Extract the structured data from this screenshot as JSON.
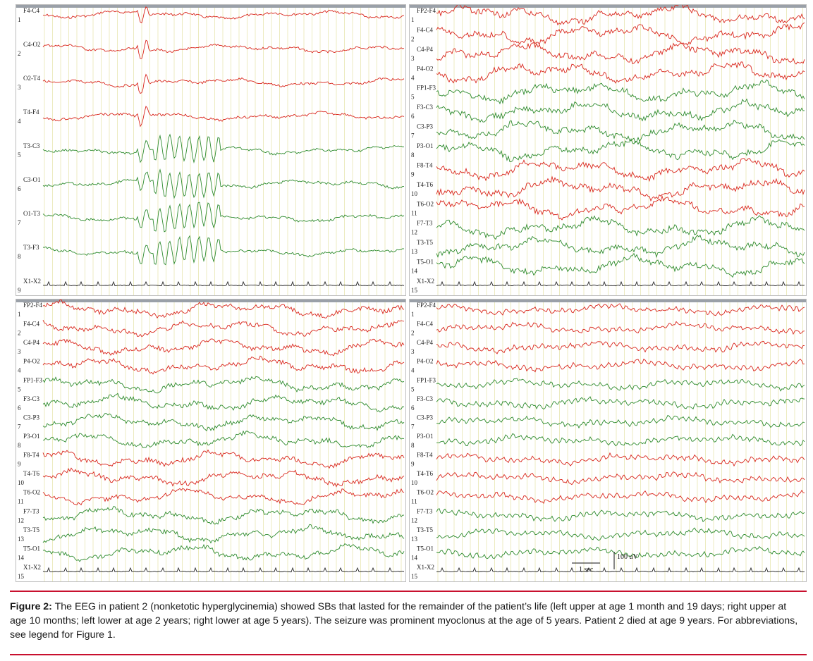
{
  "figure": {
    "panels": [
      {
        "id": "left-upper",
        "channels": [
          {
            "num": "1",
            "label": "F4-C4",
            "color": "red"
          },
          {
            "num": "2",
            "label": "C4-O2",
            "color": "red"
          },
          {
            "num": "3",
            "label": "O2-T4",
            "color": "red"
          },
          {
            "num": "4",
            "label": "T4-F4",
            "color": "red"
          },
          {
            "num": "5",
            "label": "T3-C3",
            "color": "green"
          },
          {
            "num": "6",
            "label": "C3-O1",
            "color": "green"
          },
          {
            "num": "7",
            "label": "O1-T3",
            "color": "green"
          },
          {
            "num": "8",
            "label": "T3-F3",
            "color": "green"
          },
          {
            "num": "9",
            "label": "X1-X2",
            "color": "black"
          }
        ]
      },
      {
        "id": "right-upper",
        "channels": [
          {
            "num": "1",
            "label": "FP2-F4",
            "color": "red"
          },
          {
            "num": "2",
            "label": "F4-C4",
            "color": "red"
          },
          {
            "num": "3",
            "label": "C4-P4",
            "color": "red"
          },
          {
            "num": "4",
            "label": "P4-O2",
            "color": "red"
          },
          {
            "num": "5",
            "label": "FP1-F3",
            "color": "green"
          },
          {
            "num": "6",
            "label": "F3-C3",
            "color": "green"
          },
          {
            "num": "7",
            "label": "C3-P3",
            "color": "green"
          },
          {
            "num": "8",
            "label": "P3-O1",
            "color": "green"
          },
          {
            "num": "9",
            "label": "F8-T4",
            "color": "red"
          },
          {
            "num": "10",
            "label": "T4-T6",
            "color": "red"
          },
          {
            "num": "11",
            "label": "T6-O2",
            "color": "red"
          },
          {
            "num": "12",
            "label": "F7-T3",
            "color": "green"
          },
          {
            "num": "13",
            "label": "T3-T5",
            "color": "green"
          },
          {
            "num": "14",
            "label": "T5-O1",
            "color": "green"
          },
          {
            "num": "15",
            "label": "X1-X2",
            "color": "black"
          }
        ]
      },
      {
        "id": "left-lower",
        "channels": [
          {
            "num": "1",
            "label": "FP2-F4",
            "color": "red"
          },
          {
            "num": "2",
            "label": "F4-C4",
            "color": "red"
          },
          {
            "num": "3",
            "label": "C4-P4",
            "color": "red"
          },
          {
            "num": "4",
            "label": "P4-O2",
            "color": "red"
          },
          {
            "num": "5",
            "label": "FP1-F3",
            "color": "green"
          },
          {
            "num": "6",
            "label": "F3-C3",
            "color": "green"
          },
          {
            "num": "7",
            "label": "C3-P3",
            "color": "green"
          },
          {
            "num": "8",
            "label": "P3-O1",
            "color": "green"
          },
          {
            "num": "9",
            "label": "F8-T4",
            "color": "red"
          },
          {
            "num": "10",
            "label": "T4-T6",
            "color": "red"
          },
          {
            "num": "11",
            "label": "T6-O2",
            "color": "red"
          },
          {
            "num": "12",
            "label": "F7-T3",
            "color": "green"
          },
          {
            "num": "13",
            "label": "T3-T5",
            "color": "green"
          },
          {
            "num": "14",
            "label": "T5-O1",
            "color": "green"
          },
          {
            "num": "15",
            "label": "X1-X2",
            "color": "black"
          }
        ]
      },
      {
        "id": "right-lower",
        "channels": [
          {
            "num": "1",
            "label": "FP2-F4",
            "color": "red"
          },
          {
            "num": "2",
            "label": "F4-C4",
            "color": "red"
          },
          {
            "num": "3",
            "label": "C4-P4",
            "color": "red"
          },
          {
            "num": "4",
            "label": "P4-O2",
            "color": "red"
          },
          {
            "num": "5",
            "label": "FP1-F3",
            "color": "green"
          },
          {
            "num": "6",
            "label": "F3-C3",
            "color": "green"
          },
          {
            "num": "7",
            "label": "C3-P3",
            "color": "green"
          },
          {
            "num": "8",
            "label": "P3-O1",
            "color": "green"
          },
          {
            "num": "9",
            "label": "F8-T4",
            "color": "red"
          },
          {
            "num": "10",
            "label": "T4-T6",
            "color": "red"
          },
          {
            "num": "11",
            "label": "T6-O2",
            "color": "red"
          },
          {
            "num": "12",
            "label": "F7-T3",
            "color": "green"
          },
          {
            "num": "13",
            "label": "T3-T5",
            "color": "green"
          },
          {
            "num": "14",
            "label": "T5-O1",
            "color": "green"
          },
          {
            "num": "15",
            "label": "X1-X2",
            "color": "black"
          }
        ],
        "scale_amplitude": "100 uV",
        "scale_time": "1 sec"
      }
    ]
  },
  "caption": {
    "label": "Figure 2:",
    "text": " The EEG in patient 2 (nonketotic hyperglycinemia) showed SBs that lasted for the remainder of the patient’s life (left upper at age 1 month and 19 days; right upper at age 10 months; left lower at age 2 years; right lower at age 5 years). The seizure was prominent myoclonus at the age of 5 years. Patient 2 died at age 9 years. For abbreviations, see legend for Figure 1."
  },
  "colors": {
    "rule": "#c8102e",
    "trace_red": "#d9261c",
    "trace_green": "#2e8b2e",
    "trace_black": "#222222",
    "gridline": "#ecebc0"
  }
}
